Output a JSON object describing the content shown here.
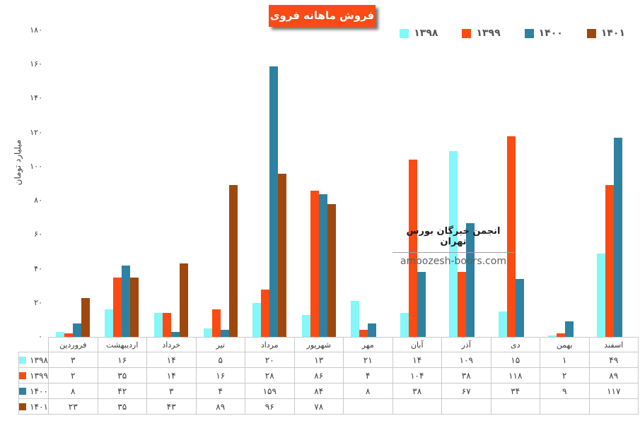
{
  "title": "فروش ماهانه فروی",
  "watermark": {
    "line1": "انجمن خبرگان بورس تهران",
    "line2": "amoozesh-boors.com"
  },
  "chart_data": {
    "type": "bar",
    "title": "فروش ماهانه فروی",
    "xlabel": "",
    "ylabel": "میلیارد تومان",
    "ylim": [
      0,
      180
    ],
    "ytick_step": 20,
    "ytick_labels": [
      "۰",
      "۲۰",
      "۴۰",
      "۶۰",
      "۸۰",
      "۱۰۰",
      "۱۲۰",
      "۱۴۰",
      "۱۶۰",
      "۱۸۰"
    ],
    "grid": false,
    "legend_position": "top-right",
    "categories": [
      "فروردین",
      "اردیبهشت",
      "خرداد",
      "تیر",
      "مرداد",
      "شهریور",
      "مهر",
      "آبان",
      "آذر",
      "دی",
      "بهمن",
      "اسفند"
    ],
    "series": [
      {
        "name": "۱۳۹۸",
        "color": "#84F7F9",
        "values": [
          3,
          16,
          14,
          5,
          20,
          13,
          21,
          14,
          109,
          15,
          1,
          49
        ]
      },
      {
        "name": "۱۳۹۹",
        "color": "#FB4B13",
        "values": [
          2,
          35,
          14,
          16,
          28,
          86,
          4,
          104,
          38,
          118,
          2,
          89
        ]
      },
      {
        "name": "۱۴۰۰",
        "color": "#2E81A0",
        "values": [
          8,
          42,
          3,
          4,
          159,
          84,
          8,
          38,
          67,
          34,
          9,
          117
        ]
      },
      {
        "name": "۱۴۰۱",
        "color": "#9E480E",
        "values": [
          23,
          35,
          43,
          89,
          96,
          78,
          null,
          null,
          null,
          null,
          null,
          null
        ]
      }
    ]
  }
}
